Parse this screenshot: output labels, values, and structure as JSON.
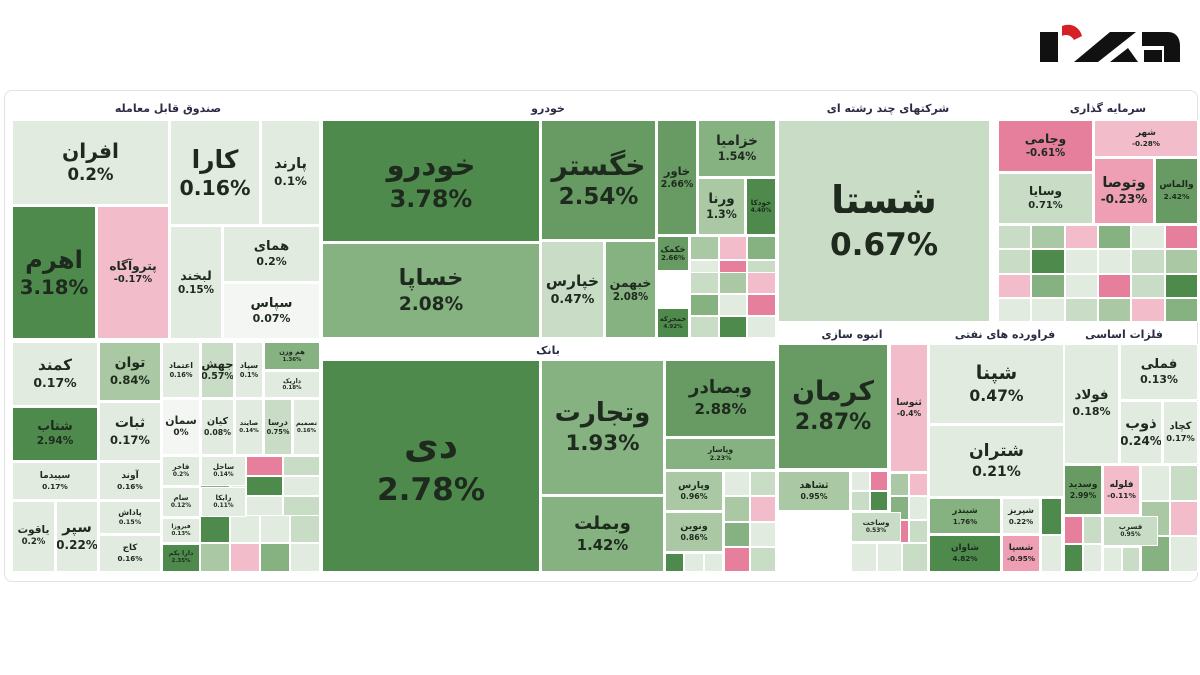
{
  "sectors": [
    {
      "title": "صندوق قابل معامله",
      "tiles": [
        {
          "name": "افران",
          "change": "0.2%"
        },
        {
          "name": "کارا",
          "change": "0.16%"
        },
        {
          "name": "پارند",
          "change": "0.1%"
        },
        {
          "name": "اهرم",
          "change": "3.18%"
        },
        {
          "name": "پتروآگاه",
          "change": "-0.17%"
        },
        {
          "name": "لبخند",
          "change": "0.15%"
        },
        {
          "name": "همای",
          "change": "0.2%"
        },
        {
          "name": "سپاس",
          "change": "0.07%"
        }
      ]
    },
    {
      "tiles": [
        {
          "name": "کمند",
          "change": "0.17%"
        },
        {
          "name": "توان",
          "change": "0.84%"
        },
        {
          "name": "شتاب",
          "change": "2.94%"
        },
        {
          "name": "ثبات",
          "change": "0.17%"
        },
        {
          "name": "سپیدما",
          "change": "0.17%"
        },
        {
          "name": "آوند",
          "change": "0.16%"
        },
        {
          "name": "یاقوت",
          "change": "0.2%"
        },
        {
          "name": "سپر",
          "change": "0.22%"
        },
        {
          "name": "پاداش",
          "change": "0.15%"
        },
        {
          "name": "کاج",
          "change": "0.16%"
        },
        {
          "name": "اعتماد",
          "change": "0.16%"
        },
        {
          "name": "جهش",
          "change": "0.57%"
        },
        {
          "name": "سپاد",
          "change": "0.1%"
        },
        {
          "name": "هم وزن",
          "change": "1.36%"
        },
        {
          "name": "داریک",
          "change": "0.18%"
        },
        {
          "name": "سمان",
          "change": "0%"
        },
        {
          "name": "کیان",
          "change": "0.08%"
        },
        {
          "name": "صایند",
          "change": "0.14%"
        },
        {
          "name": "درسا",
          "change": "0.75%"
        },
        {
          "name": "تصمیم",
          "change": "0.16%"
        },
        {
          "name": "فاخر",
          "change": "0.2%"
        },
        {
          "name": "ساحل",
          "change": "0.14%"
        },
        {
          "name": "سام",
          "change": "0.12%"
        },
        {
          "name": "رابکا",
          "change": "0.11%"
        },
        {
          "name": "فیروزا",
          "change": "0.13%"
        },
        {
          "name": "دارا یکم",
          "change": "2.35%"
        }
      ]
    },
    {
      "title": "خودرو",
      "tiles": [
        {
          "name": "خودرو",
          "change": "3.78%"
        },
        {
          "name": "خساپا",
          "change": "2.08%"
        },
        {
          "name": "خگستر",
          "change": "2.54%"
        },
        {
          "name": "خپارس",
          "change": "0.47%"
        },
        {
          "name": "خبهمن",
          "change": "2.08%"
        },
        {
          "name": "خاور",
          "change": "2.66%"
        },
        {
          "name": "خزامیا",
          "change": "1.54%"
        },
        {
          "name": "ورنا",
          "change": "1.3%"
        },
        {
          "name": "خودکا",
          "change": "4.40%"
        },
        {
          "name": "خکمک",
          "change": "2.66%"
        },
        {
          "name": "خمحرکه",
          "change": "4.92%"
        }
      ]
    },
    {
      "title": "بانک",
      "tiles": [
        {
          "name": "دی",
          "change": "2.78%"
        },
        {
          "name": "وتجارت",
          "change": "1.93%"
        },
        {
          "name": "وبملت",
          "change": "1.42%"
        },
        {
          "name": "وبصادر",
          "change": "2.88%"
        },
        {
          "name": "وپاسار",
          "change": "2.23%"
        },
        {
          "name": "وپارس",
          "change": "0.96%"
        },
        {
          "name": "ونوین",
          "change": "0.86%"
        }
      ]
    },
    {
      "title": "شرکتهای چند رشته ای",
      "tiles": [
        {
          "name": "شستا",
          "change": "0.67%"
        }
      ]
    },
    {
      "title": "سرمایه گذاری",
      "tiles": [
        {
          "name": "وجامی",
          "change": "-0.61%"
        },
        {
          "name": "شهر",
          "change": "-0.28%"
        },
        {
          "name": "وسایا",
          "change": "0.71%"
        },
        {
          "name": "وتوصا",
          "change": "-0.23%"
        },
        {
          "name": "والماس",
          "change": "2.42%"
        }
      ]
    },
    {
      "title": "انبوه سازی",
      "tiles": [
        {
          "name": "کرمان",
          "change": "2.87%"
        },
        {
          "name": "ثنوسا",
          "change": "-0.4%"
        },
        {
          "name": "ثشاهد",
          "change": "0.95%"
        },
        {
          "name": "وساخت",
          "change": "0.53%"
        }
      ]
    },
    {
      "title": "فراورده های نفتی",
      "tiles": [
        {
          "name": "شپنا",
          "change": "0.47%"
        },
        {
          "name": "شتران",
          "change": "0.21%"
        },
        {
          "name": "شبندر",
          "change": "1.76%"
        },
        {
          "name": "شپریز",
          "change": "0.22%"
        },
        {
          "name": "شاوان",
          "change": "4.82%"
        },
        {
          "name": "شسپا",
          "change": "-0.95%"
        }
      ]
    },
    {
      "title": "فلزات اساسی",
      "tiles": [
        {
          "name": "فملی",
          "change": "0.13%"
        },
        {
          "name": "فولاد",
          "change": "0.18%"
        },
        {
          "name": "ذوب",
          "change": "0.24%"
        },
        {
          "name": "کچاد",
          "change": "0.17%"
        },
        {
          "name": "وسدید",
          "change": "2.99%"
        },
        {
          "name": "فلوله",
          "change": "-0.11%"
        },
        {
          "name": "فسرب",
          "change": "0.95%"
        }
      ]
    }
  ]
}
